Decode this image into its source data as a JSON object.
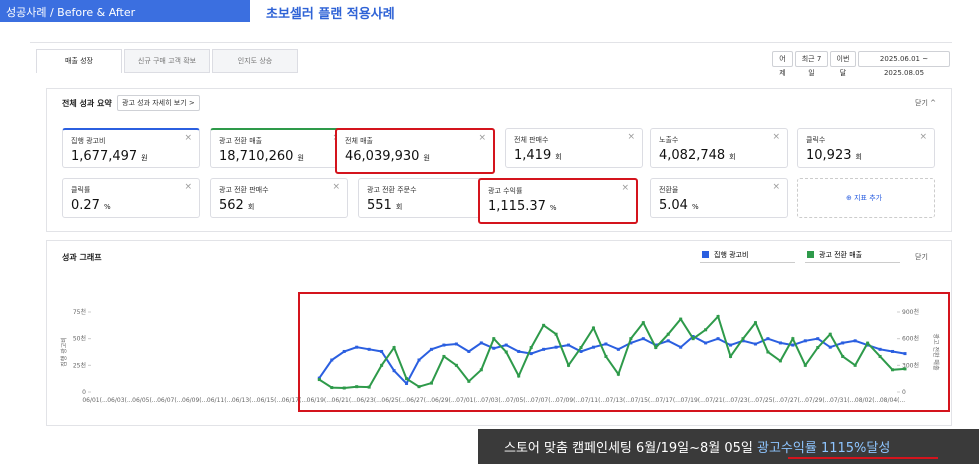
{
  "header": {
    "badge": "성공사례 / Before & After",
    "title": "초보셀러 플랜 적용사례"
  },
  "tabs": [
    "매출 성장",
    "신규 구매 고객 확보",
    "인지도 상승"
  ],
  "date_buttons": [
    "어제",
    "최근 7일",
    "이번달",
    "2025.06.01 ~ 2025.08.05"
  ],
  "summary": {
    "title": "전체 성과 요약",
    "detail_button": "광고 성과 자세히 보기 >",
    "close": "닫기 ^",
    "add_metric": "지표 추가",
    "cards": [
      [
        {
          "label": "집행 광고비",
          "value": "1,677,497",
          "unit": "원"
        },
        {
          "label": "광고 전환 매출",
          "value": "18,710,260",
          "unit": "원"
        },
        {
          "label": "전체 매출",
          "value": "46,039,930",
          "unit": "원"
        },
        {
          "label": "전체 판매수",
          "value": "1,419",
          "unit": "회"
        },
        {
          "label": "노출수",
          "value": "4,082,748",
          "unit": "회"
        },
        {
          "label": "클릭수",
          "value": "10,923",
          "unit": "회"
        }
      ],
      [
        {
          "label": "클릭률",
          "value": "0.27",
          "unit": "%"
        },
        {
          "label": "광고 전환 판매수",
          "value": "562",
          "unit": "회"
        },
        {
          "label": "광고 전환 주문수",
          "value": "551",
          "unit": "회"
        },
        {
          "label": "광고 수익률",
          "value": "1,115.37",
          "unit": "%"
        },
        {
          "label": "전환율",
          "value": "5.04",
          "unit": "%"
        }
      ]
    ]
  },
  "graph": {
    "title": "성과 그래프",
    "close": "닫기",
    "selectors": [
      "집행 광고비",
      "광고 전환 매출"
    ]
  },
  "chart_data": {
    "type": "line",
    "categories": [
      "06/01(...",
      null,
      "06/03(...",
      null,
      "06/05(...",
      null,
      "06/07(...",
      null,
      "06/09(...",
      null,
      "06/11(...",
      null,
      "06/13(...",
      null,
      "06/15(...",
      null,
      "06/17(...",
      null,
      "06/19(...",
      null,
      "06/21(...",
      null,
      "06/23(...",
      null,
      "06/25(...",
      null,
      "06/27(...",
      null,
      "06/29(...",
      null,
      "07/01(...",
      null,
      "07/03(...",
      null,
      "07/05(...",
      null,
      "07/07(...",
      null,
      "07/09(...",
      null,
      "07/11(...",
      null,
      "07/13(...",
      null,
      "07/15(...",
      null,
      "07/17(...",
      null,
      "07/19(...",
      null,
      "07/21(...",
      null,
      "07/23(...",
      null,
      "07/25(...",
      null,
      "07/27(...",
      null,
      "07/29(...",
      null,
      "07/31(...",
      null,
      "08/02(...",
      null,
      "08/04(...",
      null
    ],
    "series": [
      {
        "name": "집행 광고비",
        "color": "#2b5fe0",
        "axis": "y",
        "values": [
          null,
          null,
          null,
          null,
          null,
          null,
          null,
          null,
          null,
          null,
          null,
          null,
          null,
          null,
          null,
          null,
          null,
          null,
          13,
          30,
          38,
          42,
          40,
          38,
          20,
          8,
          30,
          40,
          44,
          45,
          38,
          46,
          41,
          44,
          38,
          36,
          40,
          42,
          44,
          38,
          42,
          45,
          40,
          46,
          50,
          44,
          48,
          42,
          52,
          46,
          50,
          44,
          48,
          45,
          50,
          46,
          44,
          48,
          50,
          42,
          46,
          48,
          44,
          40,
          38,
          36
        ]
      },
      {
        "name": "광고 전환 매출",
        "color": "#2e9a4a",
        "axis": "y2",
        "values": [
          null,
          null,
          null,
          null,
          null,
          null,
          null,
          null,
          null,
          null,
          null,
          null,
          null,
          null,
          null,
          null,
          null,
          null,
          140,
          50,
          45,
          60,
          55,
          300,
          500,
          150,
          60,
          100,
          400,
          300,
          120,
          250,
          600,
          450,
          180,
          500,
          750,
          650,
          300,
          500,
          720,
          400,
          200,
          600,
          780,
          500,
          650,
          820,
          600,
          700,
          850,
          400,
          600,
          780,
          450,
          350,
          600,
          300,
          500,
          650,
          400,
          300,
          550,
          400,
          250,
          260
        ]
      }
    ],
    "ylabel": "집행 광고비",
    "y2label": "광고 전환 매출",
    "ylim": [
      0,
      75
    ],
    "yticks": [
      0,
      {
        "value": 25,
        "label": "25천"
      },
      {
        "value": 50,
        "label": "50천"
      },
      {
        "value": 75,
        "label": "75천"
      }
    ],
    "y2lim": [
      0,
      900
    ],
    "y2ticks": [
      0,
      {
        "value": 300,
        "label": "300천"
      },
      {
        "value": 600,
        "label": "600천"
      },
      {
        "value": 900,
        "label": "900천"
      }
    ]
  },
  "caption": {
    "text": "스토어 맞춤 캠페인세팅 6월/19일~8월 05일",
    "highlight": "광고수익률 1115%달성"
  }
}
